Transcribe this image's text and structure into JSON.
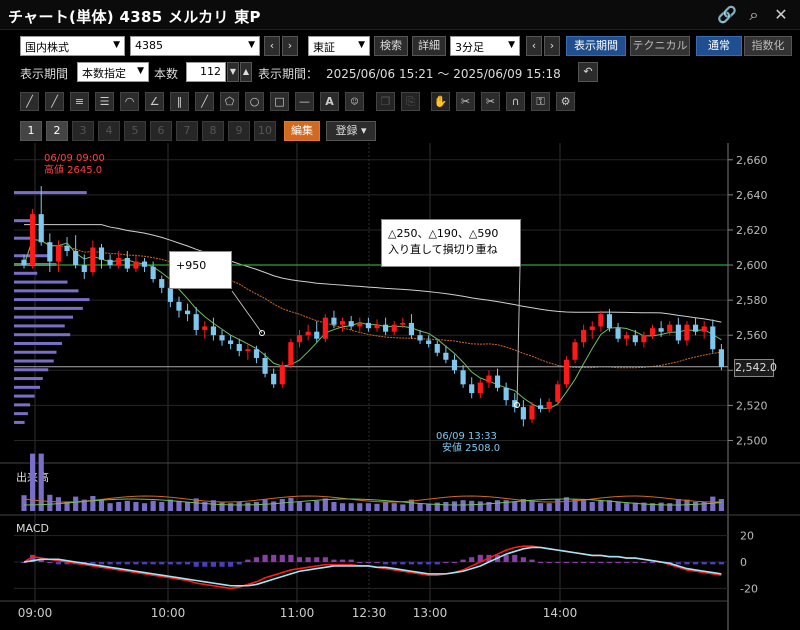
{
  "title": "チャート(単体) 4385 メルカリ 東P",
  "toolbar1": {
    "market": "国内株式",
    "code": "4385",
    "exchange": "東証",
    "search": "検索",
    "detail": "詳細",
    "interval": "3分足",
    "display_period_btn": "表示期間",
    "technical": "テクニカル",
    "normal": "通常",
    "index": "指数化"
  },
  "toolbar2": {
    "period_label": "表示期間",
    "period_mode": "本数指定",
    "count_label": "本数",
    "count_value": "112",
    "range_label": "表示期間：",
    "range_value": "2025/06/06 15:21 〜 2025/06/09 15:18"
  },
  "pages": [
    "1",
    "2",
    "3",
    "4",
    "5",
    "6",
    "7",
    "8",
    "9",
    "10"
  ],
  "edit": "編集",
  "register": "登録",
  "chart_data": {
    "type": "candlestick",
    "y_ticks": [
      "2,660",
      "2,640",
      "2,620",
      "2,600",
      "2,580",
      "2,560",
      "2,540",
      "2,520",
      "2,500"
    ],
    "ylim": [
      2490,
      2665
    ],
    "x_ticks": [
      "09:00",
      "10:00",
      "11:00",
      "12:30",
      "13:00",
      "14:00"
    ],
    "high_label": "06/09 09:00",
    "high_value": "高値 2645.0",
    "low_label": "06/09 13:33",
    "low_value": "安値 2508.0",
    "last_price": "2,542.0",
    "reference_line": 2600,
    "current_line": 2542,
    "annotations": [
      {
        "text": "+950"
      },
      {
        "text": "△250、△190、△590",
        "text2": "入り直して損切り重ね"
      }
    ],
    "candles": [
      [
        2603,
        2606,
        2598,
        2600
      ],
      [
        2600,
        2632,
        2598,
        2629
      ],
      [
        2629,
        2645,
        2611,
        2613
      ],
      [
        2613,
        2618,
        2596,
        2602
      ],
      [
        2602,
        2614,
        2596,
        2611
      ],
      [
        2611,
        2616,
        2605,
        2608
      ],
      [
        2608,
        2617,
        2598,
        2600
      ],
      [
        2600,
        2606,
        2592,
        2596
      ],
      [
        2596,
        2614,
        2594,
        2610
      ],
      [
        2610,
        2612,
        2598,
        2603
      ],
      [
        2603,
        2606,
        2598,
        2600
      ],
      [
        2600,
        2608,
        2598,
        2604
      ],
      [
        2604,
        2608,
        2596,
        2598
      ],
      [
        2598,
        2606,
        2596,
        2602
      ],
      [
        2602,
        2604,
        2596,
        2599
      ],
      [
        2599,
        2602,
        2590,
        2592
      ],
      [
        2592,
        2594,
        2584,
        2587
      ],
      [
        2587,
        2590,
        2576,
        2579
      ],
      [
        2579,
        2582,
        2570,
        2574
      ],
      [
        2574,
        2578,
        2568,
        2572
      ],
      [
        2572,
        2576,
        2560,
        2563
      ],
      [
        2563,
        2568,
        2558,
        2565
      ],
      [
        2565,
        2570,
        2557,
        2560
      ],
      [
        2560,
        2563,
        2554,
        2557
      ],
      [
        2557,
        2560,
        2552,
        2555
      ],
      [
        2555,
        2558,
        2548,
        2551
      ],
      [
        2551,
        2555,
        2546,
        2552
      ],
      [
        2552,
        2554,
        2544,
        2547
      ],
      [
        2547,
        2550,
        2536,
        2538
      ],
      [
        2538,
        2541,
        2530,
        2532
      ],
      [
        2532,
        2545,
        2530,
        2543
      ],
      [
        2543,
        2558,
        2541,
        2556
      ],
      [
        2556,
        2563,
        2553,
        2560
      ],
      [
        2560,
        2566,
        2557,
        2562
      ],
      [
        2562,
        2568,
        2556,
        2558
      ],
      [
        2558,
        2572,
        2556,
        2570
      ],
      [
        2570,
        2574,
        2564,
        2566
      ],
      [
        2566,
        2570,
        2562,
        2568
      ],
      [
        2568,
        2571,
        2563,
        2565
      ],
      [
        2565,
        2570,
        2562,
        2567
      ],
      [
        2567,
        2570,
        2562,
        2564
      ],
      [
        2564,
        2569,
        2562,
        2566
      ],
      [
        2566,
        2570,
        2560,
        2562
      ],
      [
        2562,
        2568,
        2560,
        2566
      ],
      [
        2566,
        2570,
        2564,
        2567
      ],
      [
        2567,
        2572,
        2558,
        2560
      ],
      [
        2560,
        2563,
        2555,
        2557
      ],
      [
        2557,
        2560,
        2553,
        2555
      ],
      [
        2555,
        2557,
        2548,
        2550
      ],
      [
        2550,
        2554,
        2544,
        2546
      ],
      [
        2546,
        2549,
        2538,
        2540
      ],
      [
        2540,
        2543,
        2530,
        2532
      ],
      [
        2532,
        2536,
        2524,
        2527
      ],
      [
        2527,
        2535,
        2524,
        2533
      ],
      [
        2533,
        2540,
        2530,
        2537
      ],
      [
        2537,
        2541,
        2528,
        2530
      ],
      [
        2530,
        2533,
        2520,
        2523
      ],
      [
        2523,
        2527,
        2516,
        2519
      ],
      [
        2519,
        2523,
        2508,
        2512
      ],
      [
        2512,
        2522,
        2510,
        2520
      ],
      [
        2520,
        2524,
        2516,
        2518
      ],
      [
        2518,
        2524,
        2516,
        2522
      ],
      [
        2522,
        2534,
        2520,
        2532
      ],
      [
        2532,
        2548,
        2530,
        2546
      ],
      [
        2546,
        2558,
        2544,
        2556
      ],
      [
        2556,
        2566,
        2553,
        2563
      ],
      [
        2563,
        2568,
        2558,
        2565
      ],
      [
        2565,
        2574,
        2562,
        2572
      ],
      [
        2572,
        2575,
        2562,
        2564
      ],
      [
        2564,
        2567,
        2556,
        2558
      ],
      [
        2558,
        2562,
        2554,
        2560
      ],
      [
        2560,
        2563,
        2554,
        2556
      ],
      [
        2556,
        2562,
        2553,
        2560
      ],
      [
        2560,
        2566,
        2558,
        2564
      ],
      [
        2564,
        2568,
        2559,
        2562
      ],
      [
        2562,
        2568,
        2560,
        2566
      ],
      [
        2566,
        2570,
        2555,
        2557
      ],
      [
        2557,
        2568,
        2554,
        2566
      ],
      [
        2566,
        2570,
        2560,
        2562
      ],
      [
        2562,
        2568,
        2558,
        2565
      ],
      [
        2565,
        2569,
        2550,
        2552
      ],
      [
        2552,
        2555,
        2540,
        2542
      ]
    ],
    "volume_label": "出来高",
    "macd_label": "MACD",
    "macd_ticks": [
      "20",
      "0",
      "-20"
    ],
    "macd_ylim": [
      -25,
      25
    ],
    "macd": [
      0,
      4,
      3,
      2,
      1,
      0,
      -1,
      -2,
      -3,
      -4,
      -5,
      -6,
      -7,
      -8,
      -9,
      -10,
      -11,
      -12,
      -13,
      -14,
      -16,
      -17,
      -18,
      -19,
      -20,
      -19,
      -17,
      -15,
      -12,
      -10,
      -8,
      -6,
      -5,
      -4,
      -3,
      -2,
      -2,
      -2,
      -2,
      -3,
      -3,
      -4,
      -5,
      -6,
      -7,
      -8,
      -9,
      -10,
      -10,
      -9,
      -8,
      -6,
      -3,
      0,
      3,
      6,
      9,
      11,
      12,
      12,
      11,
      10,
      9,
      8,
      7,
      6,
      5,
      5,
      4,
      4,
      3,
      3,
      2,
      1,
      0,
      -2,
      -4,
      -6,
      -7,
      -8,
      -9,
      -10
    ],
    "signal": [
      0,
      1,
      2,
      2,
      2,
      1,
      0,
      -1,
      -2,
      -3,
      -4,
      -5,
      -6,
      -7,
      -8,
      -9,
      -10,
      -11,
      -12,
      -13,
      -14,
      -15,
      -16,
      -17,
      -18,
      -18,
      -18,
      -17,
      -15,
      -13,
      -11,
      -9,
      -7,
      -6,
      -5,
      -4,
      -3,
      -3,
      -3,
      -3,
      -3,
      -4,
      -4,
      -5,
      -6,
      -7,
      -8,
      -9,
      -9,
      -9,
      -8,
      -7,
      -5,
      -3,
      0,
      3,
      6,
      8,
      10,
      11,
      11,
      10,
      9,
      8,
      7,
      6,
      5,
      5,
      4,
      4,
      3,
      3,
      2,
      1,
      0,
      -1,
      -3,
      -5,
      -6,
      -7,
      -8,
      -9
    ]
  }
}
